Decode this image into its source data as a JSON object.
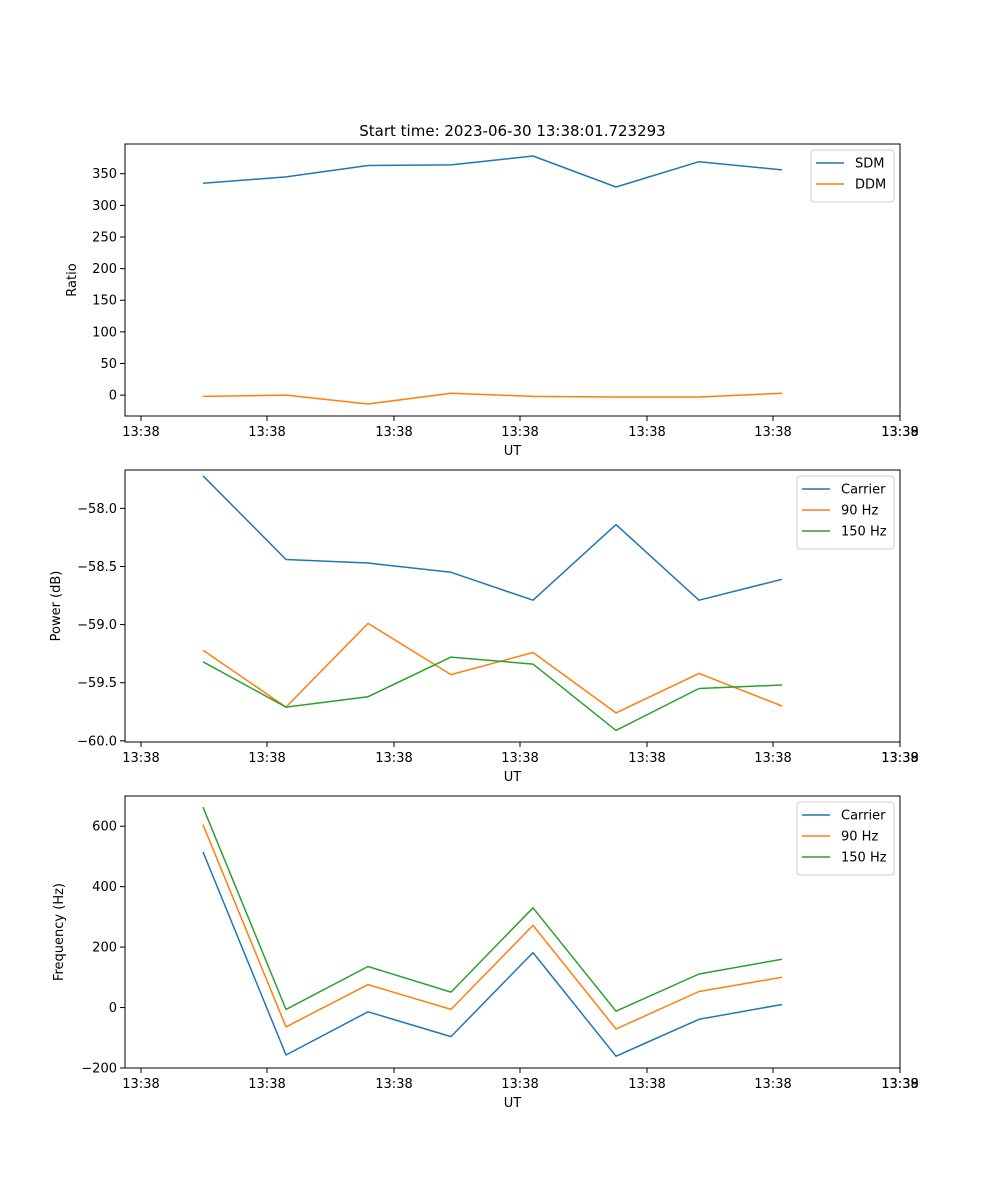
{
  "chart_data": [
    {
      "type": "line",
      "title": "Start time: 2023-06-30 13:38:01.723293",
      "xlabel": "UT",
      "ylabel": "Ratio",
      "x_tick_labels": [
        "13:38",
        "13:38",
        "13:38",
        "13:38",
        "13:38",
        "13:38",
        "13:38"
      ],
      "x_tick_end_label": "13:39",
      "ylim": [
        -33,
        397
      ],
      "yticks": [
        0,
        50,
        100,
        150,
        200,
        250,
        300,
        350
      ],
      "legend_position": "top-right",
      "grid": false,
      "series": [
        {
          "name": "SDM",
          "color": "#1f77b4",
          "values": [
            335,
            345,
            363,
            364,
            378,
            329,
            369,
            356
          ]
        },
        {
          "name": "DDM",
          "color": "#ff7f0e",
          "values": [
            -2,
            0,
            -14,
            3,
            -2,
            -3,
            -3,
            3
          ]
        }
      ]
    },
    {
      "type": "line",
      "title": "",
      "xlabel": "UT",
      "ylabel": "Power (dB)",
      "x_tick_labels": [
        "13:38",
        "13:38",
        "13:38",
        "13:38",
        "13:38",
        "13:38",
        "13:38"
      ],
      "x_tick_end_label": "13:39",
      "ylim": [
        -60.01,
        -57.67
      ],
      "yticks": [
        -60.0,
        -59.5,
        -59.0,
        -58.5,
        -58.0
      ],
      "ytick_labels": [
        "−60.0",
        "−59.5",
        "−59.0",
        "−58.5",
        "−58.0"
      ],
      "legend_position": "top-right",
      "grid": false,
      "series": [
        {
          "name": "Carrier",
          "color": "#1f77b4",
          "values": [
            -57.72,
            -58.44,
            -58.47,
            -58.55,
            -58.79,
            -58.14,
            -58.79,
            -58.61
          ]
        },
        {
          "name": "90 Hz",
          "color": "#ff7f0e",
          "values": [
            -59.22,
            -59.71,
            -58.99,
            -59.43,
            -59.24,
            -59.76,
            -59.42,
            -59.7
          ]
        },
        {
          "name": "150 Hz",
          "color": "#2ca02c",
          "values": [
            -59.32,
            -59.71,
            -59.62,
            -59.28,
            -59.34,
            -59.91,
            -59.55,
            -59.52
          ]
        }
      ]
    },
    {
      "type": "line",
      "title": "",
      "xlabel": "UT",
      "ylabel": "Frequency (Hz)",
      "x_tick_labels": [
        "13:38",
        "13:38",
        "13:38",
        "13:38",
        "13:38",
        "13:38",
        "13:38"
      ],
      "x_tick_end_label": "13:39",
      "ylim": [
        -200,
        700
      ],
      "yticks": [
        -200,
        0,
        200,
        400,
        600
      ],
      "ytick_labels": [
        "−200",
        "0",
        "200",
        "400",
        "600"
      ],
      "legend_position": "top-right",
      "grid": false,
      "series": [
        {
          "name": "Carrier",
          "color": "#1f77b4",
          "values": [
            515,
            -157,
            -14,
            -96,
            182,
            -161,
            -39,
            10
          ]
        },
        {
          "name": "90 Hz",
          "color": "#ff7f0e",
          "values": [
            605,
            -64,
            76,
            -6,
            272,
            -71,
            53,
            100
          ]
        },
        {
          "name": "150 Hz",
          "color": "#2ca02c",
          "values": [
            663,
            -6,
            136,
            51,
            330,
            -12,
            111,
            160
          ]
        }
      ]
    }
  ]
}
